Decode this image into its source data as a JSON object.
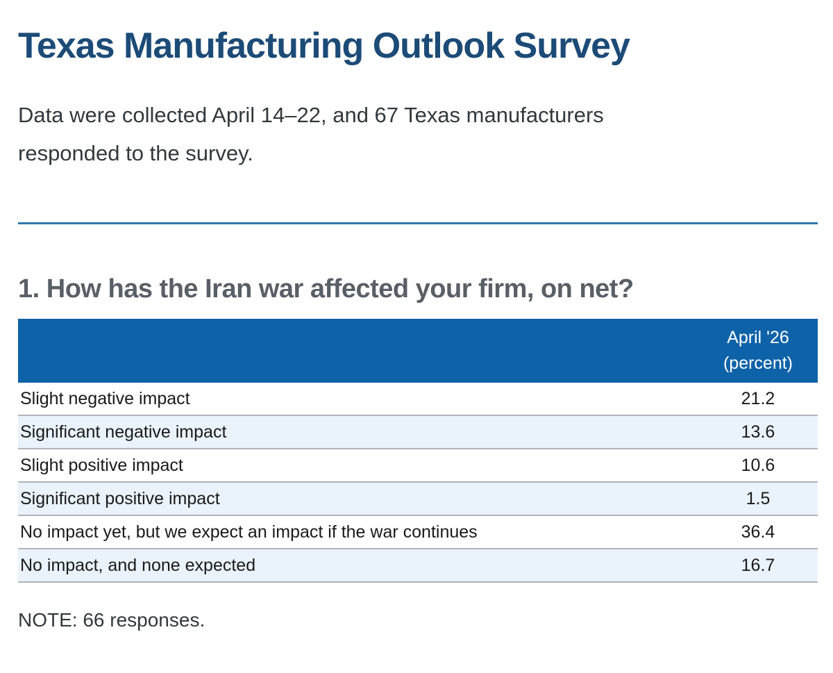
{
  "header": {
    "title": "Texas Manufacturing Outlook Survey",
    "intro_line1": "Data were collected April 14–22, and 67 Texas manufacturers",
    "intro_line2": "responded to the survey."
  },
  "question": {
    "heading": "1. How has the Iran war affected your firm, on net?"
  },
  "table": {
    "header_line1": "April '26",
    "header_line2": "(percent)",
    "rows": [
      {
        "label": "Slight negative impact",
        "value": "21.2"
      },
      {
        "label": "Significant negative impact",
        "value": "13.6"
      },
      {
        "label": "Slight positive impact",
        "value": "10.6"
      },
      {
        "label": "Significant positive impact",
        "value": "1.5"
      },
      {
        "label": "No impact yet, but we expect an impact if the war continues",
        "value": "36.4"
      },
      {
        "label": "No impact, and none expected",
        "value": "16.7"
      }
    ]
  },
  "footer": {
    "note": "NOTE: 66 responses."
  },
  "colors": {
    "title_navy": "#1c4b77",
    "heading_gray": "#595f66",
    "body_text": "#33383d",
    "divider_blue": "#2e76ae",
    "table_header_blue": "#0e62a8",
    "row_alt_blue": "#eaf2fb",
    "row_border_gray": "#b0b4b9"
  },
  "chart_data": {
    "type": "table",
    "title": "1. How has the Iran war affected your firm, on net?",
    "columns": [
      "",
      "April '26 (percent)"
    ],
    "categories": [
      "Slight negative impact",
      "Significant negative impact",
      "Slight positive impact",
      "Significant positive impact",
      "No impact yet, but we expect an impact if the war continues",
      "No impact, and none expected"
    ],
    "values": [
      21.2,
      13.6,
      10.6,
      1.5,
      36.4,
      16.7
    ],
    "note": "NOTE: 66 responses."
  }
}
